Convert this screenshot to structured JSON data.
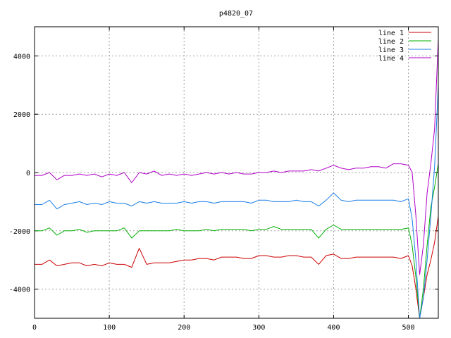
{
  "chart_data": {
    "type": "line",
    "title": "p4820_07",
    "xlabel": "",
    "ylabel": "",
    "xlim": [
      0,
      540
    ],
    "ylim": [
      -5000,
      5000
    ],
    "xticks": [
      0,
      100,
      200,
      300,
      400,
      500
    ],
    "yticks": [
      -4000,
      -2000,
      0,
      2000,
      4000
    ],
    "xtick_labels": [
      "0",
      "100",
      "200",
      "300",
      "400",
      "500"
    ],
    "ytick_labels": [
      "-4000",
      "-2000",
      "0",
      "2000",
      "4000"
    ],
    "grid": true,
    "legend": "top-right",
    "x": [
      0,
      10,
      20,
      30,
      40,
      50,
      60,
      70,
      80,
      90,
      100,
      110,
      120,
      130,
      140,
      150,
      160,
      170,
      180,
      190,
      200,
      210,
      220,
      230,
      240,
      250,
      260,
      270,
      280,
      290,
      300,
      310,
      320,
      330,
      340,
      350,
      360,
      370,
      380,
      390,
      400,
      410,
      420,
      430,
      440,
      450,
      460,
      470,
      480,
      490,
      500,
      505,
      510,
      515,
      520,
      525,
      530,
      535,
      540
    ],
    "series": [
      {
        "name": "line 1",
        "color": "#cc0000",
        "values": [
          -3150,
          -3150,
          -3000,
          -3200,
          -3150,
          -3100,
          -3100,
          -3200,
          -3150,
          -3200,
          -3100,
          -3150,
          -3150,
          -3250,
          -2600,
          -3150,
          -3100,
          -3100,
          -3100,
          -3050,
          -3000,
          -3000,
          -2950,
          -2950,
          -3000,
          -2900,
          -2900,
          -2900,
          -2950,
          -2950,
          -2850,
          -2850,
          -2900,
          -2900,
          -2850,
          -2850,
          -2900,
          -2900,
          -3150,
          -2850,
          -2800,
          -2950,
          -2950,
          -2900,
          -2900,
          -2900,
          -2900,
          -2900,
          -2900,
          -2950,
          -2850,
          -3200,
          -4000,
          -5000,
          -4300,
          -3500,
          -3000,
          -2400,
          -1500
        ]
      },
      {
        "name": "line 2",
        "color": "#00b000",
        "values": [
          -2000,
          -2000,
          -1900,
          -2150,
          -2000,
          -2000,
          -1950,
          -2050,
          -2000,
          -2000,
          -2000,
          -2000,
          -1900,
          -2250,
          -2000,
          -2000,
          -2000,
          -2000,
          -2000,
          -1950,
          -2000,
          -2000,
          -2000,
          -1950,
          -2000,
          -1950,
          -1950,
          -1950,
          -1950,
          -2000,
          -1950,
          -1950,
          -1850,
          -1950,
          -1950,
          -1950,
          -1950,
          -1950,
          -2250,
          -1950,
          -1800,
          -1950,
          -1950,
          -1950,
          -1950,
          -1950,
          -1950,
          -1950,
          -1950,
          -1950,
          -1900,
          -2500,
          -3600,
          -5000,
          -4000,
          -2500,
          -1200,
          -500,
          300
        ]
      },
      {
        "name": "line 3",
        "color": "#1a7ee6",
        "values": [
          -1100,
          -1100,
          -950,
          -1250,
          -1100,
          -1050,
          -1000,
          -1100,
          -1050,
          -1100,
          -1000,
          -1050,
          -1050,
          -1150,
          -1000,
          -1050,
          -1000,
          -1050,
          -1050,
          -1050,
          -1000,
          -1050,
          -1000,
          -1000,
          -1050,
          -1000,
          -1000,
          -1000,
          -1000,
          -1050,
          -950,
          -950,
          -1000,
          -1000,
          -1000,
          -950,
          -1000,
          -1000,
          -1150,
          -950,
          -700,
          -950,
          -1000,
          -950,
          -950,
          -950,
          -950,
          -950,
          -950,
          -1000,
          -900,
          -1600,
          -3000,
          -5000,
          -4300,
          -3000,
          -1500,
          200,
          3000
        ]
      },
      {
        "name": "line 4",
        "color": "#b000c8",
        "values": [
          -100,
          -100,
          0,
          -250,
          -100,
          -100,
          -50,
          -100,
          -50,
          -150,
          -50,
          -100,
          0,
          -350,
          0,
          -50,
          50,
          -100,
          -50,
          -100,
          -50,
          -100,
          -50,
          0,
          -50,
          0,
          -50,
          0,
          -50,
          -50,
          0,
          0,
          50,
          0,
          50,
          50,
          50,
          100,
          50,
          150,
          250,
          150,
          100,
          150,
          150,
          200,
          200,
          150,
          300,
          300,
          250,
          0,
          -1500,
          -3500,
          -2500,
          -700,
          300,
          1500,
          4600
        ]
      }
    ]
  }
}
